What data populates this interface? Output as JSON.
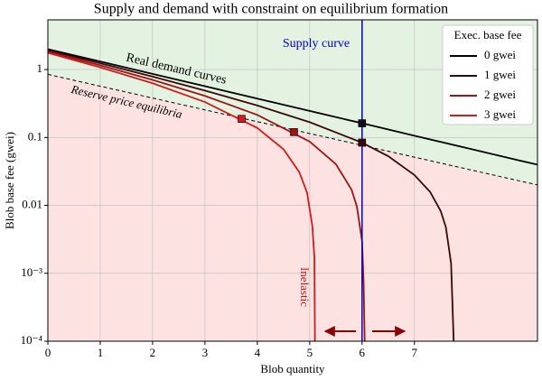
{
  "chart_data": {
    "type": "line",
    "title": "Supply and demand with constraint on equilibrium formation",
    "x_label": "Blob quantity",
    "y_label": "Blob base fee (gwei)",
    "log_y": true,
    "xlim": [
      0,
      9.35
    ],
    "ylim": [
      0.0001,
      5.4
    ],
    "xticks": [
      0,
      1,
      2,
      3,
      4,
      5,
      6,
      7
    ],
    "yticks": [
      {
        "value": 0.0001,
        "label": "10⁻⁴"
      },
      {
        "value": 0.001,
        "label": "10⁻³"
      },
      0.01,
      0.1,
      1
    ],
    "grid": true,
    "legend_title": "Exec. base fee",
    "legend_position": "upper-right",
    "series": [
      {
        "name": "0 gwei",
        "color": "#000000",
        "x": [
          0,
          1,
          2,
          3,
          4,
          5,
          6,
          7,
          8,
          9,
          9.35
        ],
        "values": [
          2,
          1.315,
          0.865,
          0.569,
          0.374,
          0.246,
          0.162,
          0.106,
          0.07,
          0.046,
          0.0398
        ]
      },
      {
        "name": "1 gwei",
        "color": "#3a0808",
        "x": [
          0,
          1,
          2,
          3,
          4,
          5,
          6,
          6.5,
          7,
          7.3,
          7.5,
          7.6,
          7.7,
          7.75
        ],
        "values": [
          1.922,
          1.237,
          0.787,
          0.491,
          0.296,
          0.168,
          0.084,
          0.053,
          0.028,
          0.0158,
          0.0083,
          0.0048,
          0.0014,
          0.0001
        ]
      },
      {
        "name": "2 gwei",
        "color": "#9c1414",
        "x": [
          0,
          1,
          2,
          3,
          4,
          5,
          5.5,
          5.8,
          5.9,
          6,
          6.03,
          6.05
        ],
        "values": [
          1.841,
          1.156,
          0.706,
          0.41,
          0.215,
          0.087,
          0.0405,
          0.017,
          0.0097,
          0.003,
          0.0007,
          0.0001
        ]
      },
      {
        "name": "3 gwei",
        "color": "#d41a1a",
        "x": [
          0,
          1,
          2,
          3,
          4,
          4.5,
          4.8,
          4.95,
          5.05,
          5.09,
          5.1
        ],
        "values": [
          1.764,
          1.079,
          0.629,
          0.333,
          0.138,
          0.067,
          0.031,
          0.0154,
          0.005,
          0.0017,
          0.0001
        ]
      }
    ],
    "reserve_line": {
      "x": [
        0,
        9.35
      ],
      "values": [
        0.85,
        0.02
      ]
    },
    "equilibria": {
      "x": [
        6,
        6,
        4.7,
        3.7
      ],
      "values": [
        0.162,
        0.084,
        0.12,
        0.188
      ],
      "colors": [
        "#111111",
        "#3a0808",
        "#9c1414",
        "#d41a1a"
      ]
    },
    "supply_x": 6,
    "supply_color": "#0000cc",
    "annotations": {
      "supply": "Supply curve",
      "demand": "Real demand curves",
      "reserve": "Reserve price equilibria",
      "inelastic": "Inelastic"
    }
  }
}
